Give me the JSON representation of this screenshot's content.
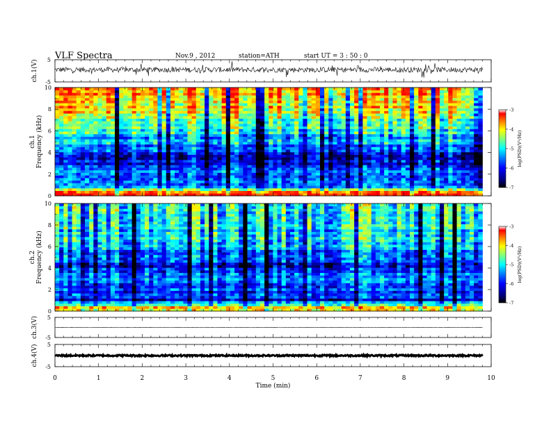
{
  "header": {
    "title": "VLF  Spectra",
    "date": "Nov.9  , 2012",
    "station": "station=ATH",
    "start": "start  UT  =   3  : 50 : 0"
  },
  "colors": {
    "jet": [
      "#000000",
      "#00007f",
      "#0000ff",
      "#007fff",
      "#00ffff",
      "#7fff7f",
      "#ffff00",
      "#ff7f00",
      "#ff0000",
      "#ffffff"
    ]
  },
  "chart_data": [
    {
      "type": "line",
      "panel": "ch1-waveform",
      "ylabel": "ch.1(V)",
      "ylim": [
        -5,
        5
      ],
      "yticks": [
        "5",
        "-5"
      ],
      "approx_baseline": 0.5,
      "approx_amplitude": 1.2
    },
    {
      "type": "heatmap",
      "panel": "ch1-spectrogram",
      "ylabel": [
        "ch.1",
        "Frequency  (kHz)"
      ],
      "ylim": [
        0,
        10
      ],
      "yticks": [
        "0",
        "2",
        "4",
        "6",
        "8",
        "10"
      ],
      "xlim": [
        0,
        10
      ],
      "data_end_min": 9.8,
      "colorbar": {
        "label": "log(PSD)(V²/Hz)",
        "range": [
          -7,
          -3
        ],
        "ticks": [
          "-3",
          "-4",
          "-5",
          "-6",
          "-7"
        ]
      },
      "approx_profile": [
        {
          "kHz": 0.3,
          "log_psd": -3.2
        },
        {
          "kHz": 1.0,
          "log_psd": -5.8
        },
        {
          "kHz": 2.0,
          "log_psd": -5.6
        },
        {
          "kHz": 3.0,
          "log_psd": -6.1
        },
        {
          "kHz": 4.0,
          "log_psd": -6.0
        },
        {
          "kHz": 5.0,
          "log_psd": -5.3
        },
        {
          "kHz": 6.0,
          "log_psd": -4.9
        },
        {
          "kHz": 7.0,
          "log_psd": -4.5
        },
        {
          "kHz": 8.0,
          "log_psd": -4.0
        },
        {
          "kHz": 9.0,
          "log_psd": -3.8
        },
        {
          "kHz": 10.0,
          "log_psd": -3.7
        }
      ]
    },
    {
      "type": "heatmap",
      "panel": "ch2-spectrogram",
      "ylabel": [
        "ch.2",
        "Frequency  (kHz)"
      ],
      "ylim": [
        0,
        10
      ],
      "yticks": [
        "0",
        "2",
        "4",
        "6",
        "8",
        "10"
      ],
      "xlim": [
        0,
        10
      ],
      "data_end_min": 9.8,
      "colorbar": {
        "label": "log(PSD)(V²/Hz)",
        "range": [
          -7,
          -3
        ],
        "ticks": [
          "-3",
          "-4",
          "-5",
          "-6",
          "-7"
        ]
      },
      "approx_profile": [
        {
          "kHz": 0.3,
          "log_psd": -3.8
        },
        {
          "kHz": 1.0,
          "log_psd": -5.9
        },
        {
          "kHz": 2.0,
          "log_psd": -5.6
        },
        {
          "kHz": 3.0,
          "log_psd": -5.5
        },
        {
          "kHz": 4.0,
          "log_psd": -6.0
        },
        {
          "kHz": 5.0,
          "log_psd": -5.6
        },
        {
          "kHz": 6.0,
          "log_psd": -5.3
        },
        {
          "kHz": 7.0,
          "log_psd": -5.1
        },
        {
          "kHz": 8.0,
          "log_psd": -4.9
        },
        {
          "kHz": 9.0,
          "log_psd": -4.8
        },
        {
          "kHz": 10.0,
          "log_psd": -4.8
        }
      ]
    },
    {
      "type": "line",
      "panel": "ch3-waveform",
      "ylabel": "ch.3(V)",
      "ylim": [
        -5,
        5
      ],
      "yticks": [
        "5",
        "-5"
      ],
      "approx_baseline": 0.0,
      "approx_amplitude": 0.05
    },
    {
      "type": "line",
      "panel": "ch4-waveform",
      "ylabel": "ch.4(V)",
      "ylim": [
        -5,
        5
      ],
      "yticks": [
        "5",
        "-5"
      ],
      "approx_baseline": 0.0,
      "approx_amplitude": 0.35
    }
  ],
  "time_axis": {
    "label": "Time  (min)",
    "range": [
      0,
      10
    ],
    "ticks": [
      "0",
      "1",
      "2",
      "3",
      "4",
      "5",
      "6",
      "7",
      "8",
      "9",
      "10"
    ]
  }
}
